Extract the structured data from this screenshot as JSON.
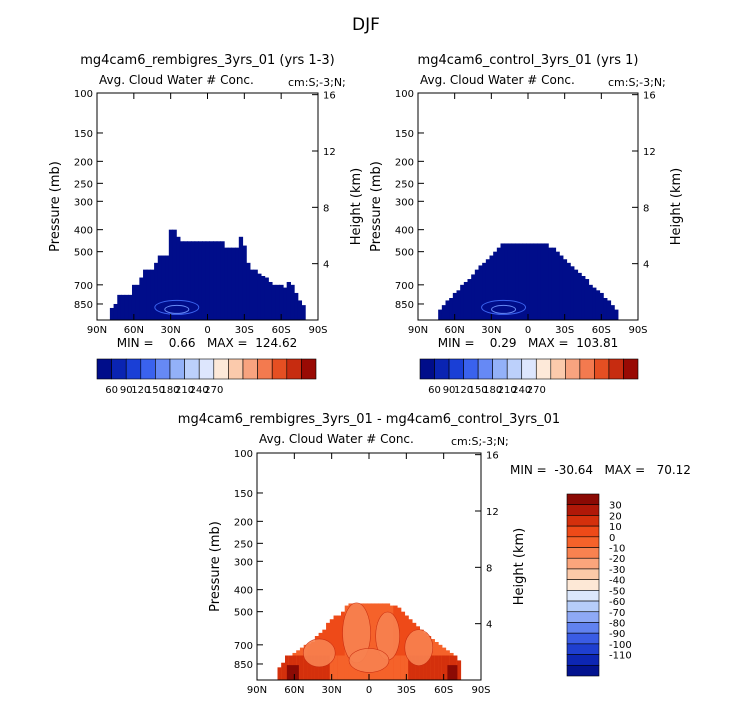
{
  "figure": {
    "title": "DJF"
  },
  "chart_data": [
    {
      "type": "heatmap",
      "title": "mg4cam6_rembigres_3yrs_01 (yrs 1-3)",
      "subtitle": "Avg. Cloud Water # Conc.",
      "units": "cm:S;-3;N;",
      "ylabel": "Pressure (mb)",
      "ylabel_right": "Height (km)",
      "x_ticks": [
        "90N",
        "60N",
        "30N",
        "0",
        "30S",
        "60S",
        "90S"
      ],
      "x_values": [
        90,
        60,
        30,
        0,
        -30,
        -60,
        -90
      ],
      "xlim": [
        90,
        -90
      ],
      "y_ticks": [
        "100",
        "150",
        "200",
        "250",
        "300",
        "400",
        "500",
        "700",
        "850"
      ],
      "y_values": [
        100,
        150,
        200,
        250,
        300,
        400,
        500,
        700,
        850
      ],
      "ylim": [
        100,
        1000
      ],
      "yscale": "log",
      "y_right_ticks": [
        "16",
        "12",
        "8",
        "4"
      ],
      "stats": "MIN =    0.66   MAX =  124.62",
      "min": 0.66,
      "max": 124.62,
      "colorbar": {
        "orientation": "horizontal",
        "labels": [
          "60",
          "90",
          "120",
          "150",
          "180",
          "210",
          "240",
          "270"
        ],
        "colors": [
          "#000d8a",
          "#0a24b2",
          "#1a3fd6",
          "#3a62ee",
          "#6689f5",
          "#93b1f8",
          "#bcd0fb",
          "#dde6fd",
          "#fde9d9",
          "#fbcaac",
          "#f8a37f",
          "#f37a4f",
          "#e54f22",
          "#c72c10",
          "#990a04"
        ]
      },
      "region_edge_lat": [
        78,
        75,
        72,
        69,
        66,
        63,
        60,
        57,
        54,
        51,
        48,
        45,
        42,
        39,
        36,
        33,
        30,
        27,
        24,
        21,
        18,
        15,
        12,
        9,
        6,
        3,
        0,
        -3,
        -6,
        -9,
        -12,
        -15,
        -18,
        -21,
        -24,
        -27,
        -30,
        -33,
        -36,
        -39,
        -42,
        -45,
        -48,
        -51,
        -54,
        -57,
        -60,
        -63,
        -66,
        -69,
        -72,
        -75,
        -78
      ],
      "region_top_p": [
        885,
        850,
        775,
        775,
        775,
        775,
        700,
        700,
        650,
        600,
        600,
        600,
        560,
        520,
        520,
        520,
        400,
        400,
        430,
        450,
        450,
        450,
        450,
        450,
        450,
        450,
        450,
        450,
        450,
        450,
        450,
        480,
        480,
        480,
        480,
        430,
        470,
        560,
        600,
        600,
        625,
        640,
        650,
        680,
        700,
        700,
        700,
        720,
        680,
        700,
        760,
        820,
        860
      ]
    },
    {
      "type": "heatmap",
      "title": "mg4cam6_control_3yrs_01 (yrs 1)",
      "subtitle": "Avg. Cloud Water # Conc.",
      "units": "cm:S;-3;N;",
      "ylabel": "Pressure (mb)",
      "ylabel_right": "Height (km)",
      "x_ticks": [
        "90N",
        "60N",
        "30N",
        "0",
        "30S",
        "60S",
        "90S"
      ],
      "x_values": [
        90,
        60,
        30,
        0,
        -30,
        -60,
        -90
      ],
      "xlim": [
        90,
        -90
      ],
      "y_ticks": [
        "100",
        "150",
        "200",
        "250",
        "300",
        "400",
        "500",
        "700",
        "850"
      ],
      "y_values": [
        100,
        150,
        200,
        250,
        300,
        400,
        500,
        700,
        850
      ],
      "ylim": [
        100,
        1000
      ],
      "yscale": "log",
      "y_right_ticks": [
        "16",
        "12",
        "8",
        "4"
      ],
      "stats": "MIN =    0.29   MAX =  103.81",
      "min": 0.29,
      "max": 103.81,
      "colorbar": {
        "orientation": "horizontal",
        "labels": [
          "60",
          "90",
          "120",
          "150",
          "180",
          "210",
          "240",
          "270"
        ],
        "colors": [
          "#000d8a",
          "#0a24b2",
          "#1a3fd6",
          "#3a62ee",
          "#6689f5",
          "#93b1f8",
          "#bcd0fb",
          "#dde6fd",
          "#fde9d9",
          "#fbcaac",
          "#f8a37f",
          "#f37a4f",
          "#e54f22",
          "#c72c10",
          "#990a04"
        ]
      },
      "region_edge_lat": [
        72,
        69,
        66,
        63,
        60,
        57,
        54,
        51,
        48,
        45,
        42,
        39,
        36,
        33,
        30,
        27,
        24,
        21,
        18,
        15,
        12,
        9,
        6,
        3,
        0,
        -3,
        -6,
        -9,
        -12,
        -15,
        -18,
        -21,
        -24,
        -27,
        -30,
        -33,
        -36,
        -39,
        -42,
        -45,
        -48,
        -51,
        -54,
        -57,
        -60,
        -63,
        -66,
        -69,
        -72
      ],
      "region_top_p": [
        900,
        860,
        820,
        800,
        760,
        740,
        700,
        680,
        660,
        630,
        600,
        575,
        560,
        540,
        520,
        500,
        480,
        460,
        460,
        460,
        460,
        460,
        460,
        460,
        460,
        460,
        460,
        460,
        460,
        460,
        480,
        480,
        500,
        520,
        540,
        560,
        580,
        600,
        620,
        640,
        660,
        700,
        720,
        740,
        760,
        800,
        820,
        860,
        900
      ]
    },
    {
      "type": "heatmap",
      "title": "mg4cam6_rembigres_3yrs_01 - mg4cam6_control_3yrs_01",
      "subtitle": "Avg. Cloud Water # Conc.",
      "units": "cm:S;-3;N;",
      "ylabel": "Pressure (mb)",
      "ylabel_right": "Height (km)",
      "x_ticks": [
        "90N",
        "60N",
        "30N",
        "0",
        "30S",
        "60S",
        "90S"
      ],
      "x_values": [
        90,
        60,
        30,
        0,
        -30,
        -60,
        -90
      ],
      "xlim": [
        90,
        -90
      ],
      "y_ticks": [
        "100",
        "150",
        "200",
        "250",
        "300",
        "400",
        "500",
        "700",
        "850"
      ],
      "y_values": [
        100,
        150,
        200,
        250,
        300,
        400,
        500,
        700,
        850
      ],
      "ylim": [
        100,
        1000
      ],
      "yscale": "log",
      "y_right_ticks": [
        "16",
        "12",
        "8",
        "4"
      ],
      "stats": "MIN =  -30.64   MAX =   70.12",
      "min": -30.64,
      "max": 70.12,
      "colorbar": {
        "orientation": "vertical",
        "labels": [
          "30",
          "20",
          "10",
          "0",
          "-10",
          "-20",
          "-30",
          "-40",
          "-50",
          "-60",
          "-70",
          "-80",
          "-90",
          "-100",
          "-110"
        ],
        "colors": [
          "#8b0a04",
          "#b01808",
          "#d4300c",
          "#ee4a18",
          "#f5622a",
          "#f88250",
          "#fba57c",
          "#fcc9a8",
          "#fde8d6",
          "#dbe7fc",
          "#b6cdf9",
          "#8ea9f5",
          "#6182ef",
          "#3a5ce4",
          "#1f3fd0",
          "#0d26b4",
          "#03138f"
        ]
      },
      "region_edge_lat": [
        72,
        69,
        66,
        63,
        60,
        57,
        54,
        51,
        48,
        45,
        42,
        39,
        36,
        33,
        30,
        27,
        24,
        21,
        18,
        15,
        12,
        9,
        6,
        3,
        0,
        -3,
        -6,
        -9,
        -12,
        -15,
        -18,
        -21,
        -24,
        -27,
        -30,
        -33,
        -36,
        -39,
        -42,
        -45,
        -48,
        -51,
        -54,
        -57,
        -60,
        -63,
        -66,
        -69,
        -72
      ],
      "region_top_p": [
        880,
        840,
        780,
        780,
        760,
        740,
        720,
        700,
        690,
        680,
        640,
        620,
        600,
        560,
        540,
        520,
        520,
        500,
        470,
        460,
        460,
        460,
        460,
        460,
        460,
        460,
        460,
        460,
        460,
        460,
        470,
        470,
        480,
        500,
        520,
        540,
        560,
        580,
        600,
        620,
        640,
        660,
        680,
        700,
        720,
        740,
        760,
        780,
        820
      ]
    }
  ]
}
